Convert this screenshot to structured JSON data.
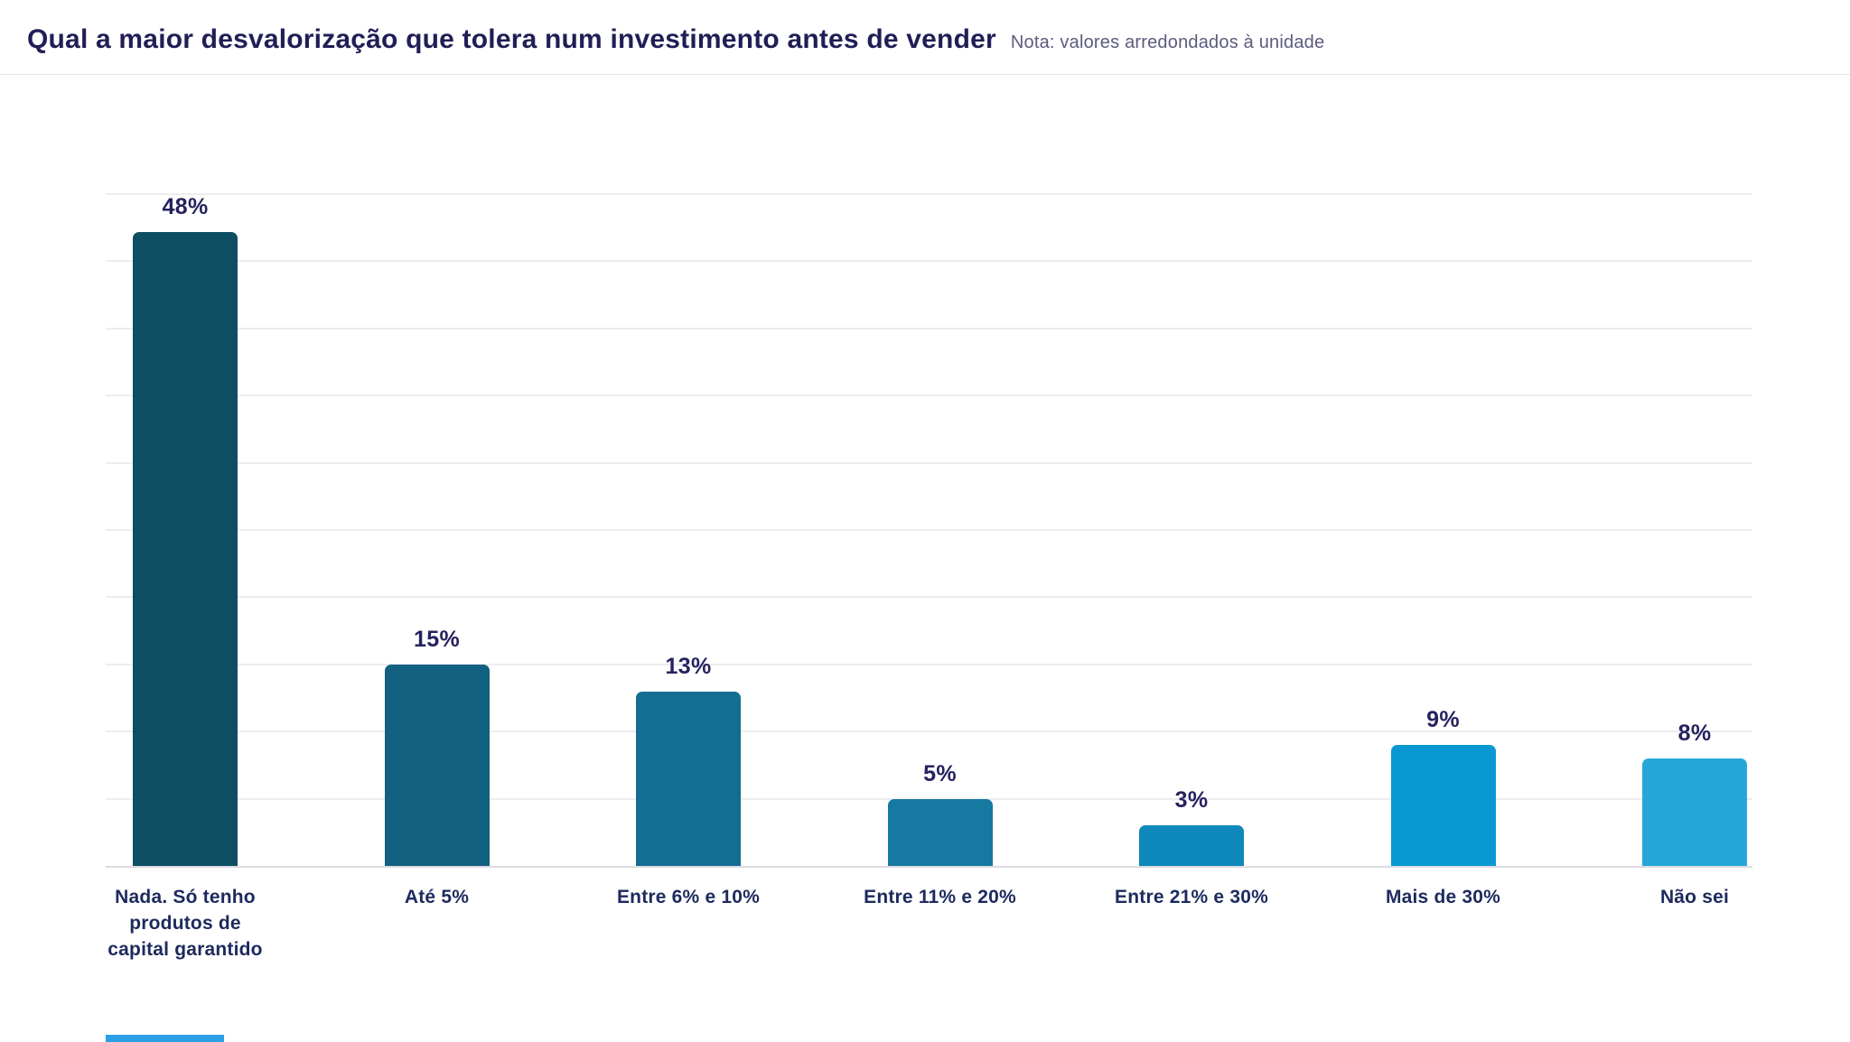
{
  "header": {
    "title": "Qual a maior desvalorização que tolera num investimento antes de vender",
    "note": "Nota: valores arredondados à unidade"
  },
  "chart_data": {
    "type": "bar",
    "title": "Qual a maior desvalorização que tolera num investimento antes de vender",
    "annotation": "Nota: valores arredondados à unidade",
    "categories": [
      "Nada. Só tenho\nprodutos de\ncapital garantido",
      "Até 5%",
      "Entre 6% e 10%",
      "Entre 11% e 20%",
      "Entre 21% e 30%",
      "Mais de 30%",
      "Não sei"
    ],
    "values": [
      48,
      15,
      13,
      5,
      3,
      9,
      8
    ],
    "value_labels": [
      "48%",
      "15%",
      "13%",
      "5%",
      "3%",
      "9%",
      "8%"
    ],
    "bar_colors": [
      "#0d4e63",
      "#136180",
      "#146e92",
      "#1579a2",
      "#0f88bb",
      "#0998d2",
      "#25a8d9"
    ],
    "ylim": [
      0,
      50
    ],
    "gridline_step": 5,
    "grid": true,
    "legend": "none",
    "value_label_color": "#262260",
    "category_label_color": "#1d2a5e",
    "accent_color": "#2b9fe5"
  }
}
